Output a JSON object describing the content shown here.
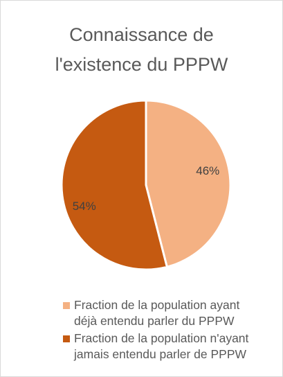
{
  "chart_data": {
    "type": "pie",
    "title": "Connaissance de l'existence du PPPW",
    "categories": [
      "Fraction de la population ayant déjà entendu parler du PPPW",
      "Fraction de la population n'ayant jamais entendu parler de PPPW"
    ],
    "values": [
      46,
      54
    ],
    "value_labels": [
      "46%",
      "54%"
    ],
    "colors": [
      "#F4B183",
      "#C55A11"
    ],
    "legend": "bottom"
  }
}
